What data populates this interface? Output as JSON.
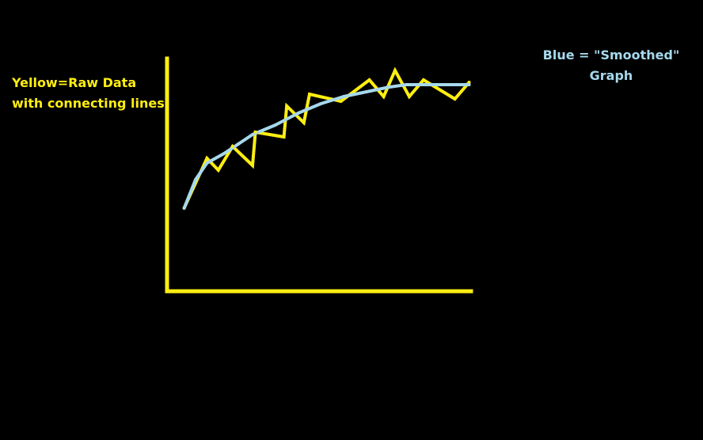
{
  "colors": {
    "background": "#000000",
    "raw": "#ffee11",
    "smoothed": "#a6d8ec"
  },
  "labels": {
    "raw_line1": "Yellow=Raw Data",
    "raw_line2": "with connecting lines",
    "smoothed_line1": "Blue = \"Smoothed\"",
    "smoothed_line2": "Graph"
  },
  "chart_data": {
    "type": "line",
    "title": "",
    "xlabel": "",
    "ylabel": "",
    "x_ticks": [],
    "y_ticks": [],
    "grid": false,
    "xlim": [
      0,
      100
    ],
    "ylim": [
      0,
      100
    ],
    "series": [
      {
        "id": "raw",
        "color": "#ffee11",
        "x": [
          6,
          14,
          18,
          23,
          30,
          31,
          41,
          42,
          48,
          50,
          61,
          71,
          76,
          80,
          85,
          90,
          101,
          106
        ],
        "y": [
          35,
          56,
          51,
          61,
          53,
          67,
          65,
          78,
          71,
          83,
          80,
          89,
          82,
          93,
          82,
          89,
          81,
          88
        ]
      },
      {
        "id": "smoothed",
        "color": "#a6d8ec",
        "x": [
          6,
          10,
          14,
          20,
          25,
          30,
          38,
          46,
          54,
          62,
          70,
          78,
          84,
          90,
          96,
          100,
          106
        ],
        "y": [
          35,
          47,
          54,
          58,
          62,
          66,
          70,
          75,
          79,
          82,
          84,
          86,
          87,
          87,
          87,
          87,
          87
        ]
      }
    ]
  }
}
